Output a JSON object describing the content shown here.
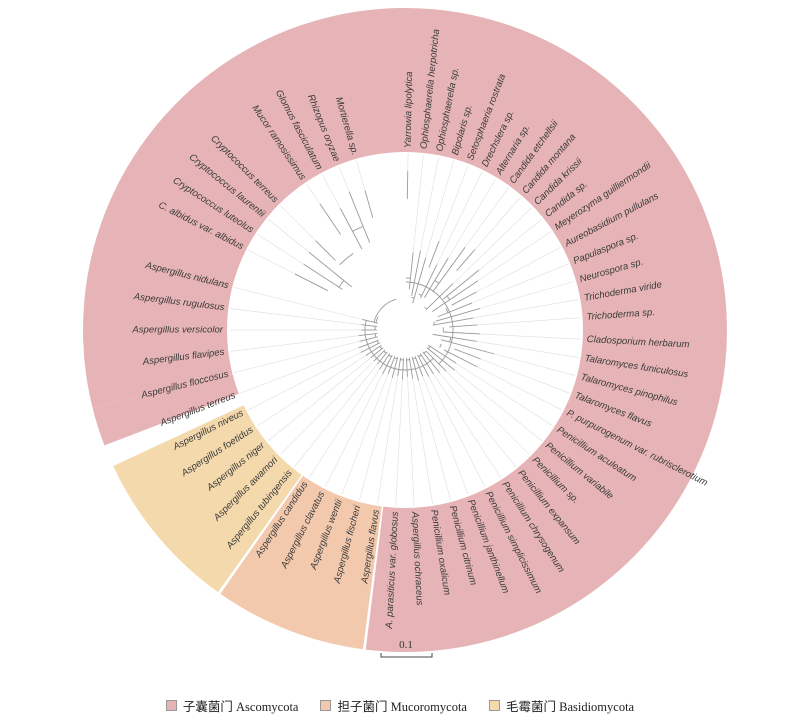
{
  "colors": {
    "ascomycota": "#e6b4b6",
    "mucoromycota": "#f3c9ae",
    "basidiomycota": "#f4d9ad",
    "branch": "#9a9a9a",
    "guide": "#dedede"
  },
  "clades": [
    {
      "id": "ascomycota",
      "start": 166.0,
      "end": 457.0,
      "color": "#e6b4b6"
    },
    {
      "id": "mucoromycota",
      "start": 457.5,
      "end": 485.0,
      "color": "#f3c9ae"
    },
    {
      "id": "basidiomycota",
      "start": 485.5,
      "end": 515.0,
      "color": "#f4d9ad"
    },
    {
      "id": "ascomycota-b",
      "start": 519.0,
      "end": 526.0,
      "color": "#e6b4b6"
    }
  ],
  "leaves": [
    {
      "name": "Yarrowia lipolytica",
      "angle": -89,
      "depth": 0.05
    },
    {
      "name": "Ophiosphaerella herpotricha",
      "angle": -84,
      "depth": 0.62
    },
    {
      "name": "Ophiosphaerella sp.",
      "angle": -79,
      "depth": 0.6
    },
    {
      "name": "Bipolaris sp.",
      "angle": -74,
      "depth": 0.64
    },
    {
      "name": "Setosphaeria rostrata",
      "angle": -69,
      "depth": 0.5
    },
    {
      "name": "Drechslera sp.",
      "angle": -64,
      "depth": 0.66
    },
    {
      "name": "Alternaria sp.",
      "angle": -59,
      "depth": 0.58
    },
    {
      "name": "Candida etchellsii",
      "angle": -54,
      "depth": 0.45
    },
    {
      "name": "Candida montana",
      "angle": -49,
      "depth": 0.42
    },
    {
      "name": "Candida krissii",
      "angle": -44,
      "depth": 0.7
    },
    {
      "name": "Candida sp.",
      "angle": -39,
      "depth": 0.5
    },
    {
      "name": "Meyerozyma guilliermondii",
      "angle": -34,
      "depth": 0.55
    },
    {
      "name": "Aureobasidium pullulans",
      "angle": -28,
      "depth": 0.6
    },
    {
      "name": "Papulaspora sp.",
      "angle": -22,
      "depth": 0.66
    },
    {
      "name": "Neurospora sp.",
      "angle": -16,
      "depth": 0.62
    },
    {
      "name": "Trichoderma viride",
      "angle": -10,
      "depth": 0.68
    },
    {
      "name": "Trichoderma sp.",
      "angle": -4,
      "depth": 0.66
    },
    {
      "name": "Cladosporium herbarum",
      "angle": 3,
      "depth": 0.64
    },
    {
      "name": "Talaromyces funiculosus",
      "angle": 9,
      "depth": 0.66
    },
    {
      "name": "Talaromyces pinophilus",
      "angle": 15,
      "depth": 0.52
    },
    {
      "name": "Talaromyces flavus",
      "angle": 21,
      "depth": 0.6
    },
    {
      "name": "P. purpurogenum var. rubrisclerotium",
      "angle": 27,
      "depth": 0.6
    },
    {
      "name": "Penicillium aculeatum",
      "angle": 33,
      "depth": 0.74
    },
    {
      "name": "Penicillium variabile",
      "angle": 39,
      "depth": 0.72
    },
    {
      "name": "Penicillium sp.",
      "angle": 45,
      "depth": 0.76
    },
    {
      "name": "Penicillium expansum",
      "angle": 51,
      "depth": 0.78
    },
    {
      "name": "Penicillium chrysogenum",
      "angle": 57,
      "depth": 0.8
    },
    {
      "name": "Penicillium simplicissimum",
      "angle": 63,
      "depth": 0.8
    },
    {
      "name": "Penicillium janthinellum",
      "angle": 69,
      "depth": 0.82
    },
    {
      "name": "Penicillium citrinum",
      "angle": 75,
      "depth": 0.8
    },
    {
      "name": "Penicillium oxalicum",
      "angle": 81,
      "depth": 0.82
    },
    {
      "name": "Aspergillus ochraceus",
      "angle": 87,
      "depth": 0.84
    },
    {
      "name": "A. parasiticus var. globosus",
      "angle": 93,
      "depth": 0.82
    },
    {
      "name": "Aspergillus flavus",
      "angle": 99,
      "depth": 0.84
    },
    {
      "name": "Aspergillus fischeri",
      "angle": 105,
      "depth": 0.82
    },
    {
      "name": "Aspergillus wentii",
      "angle": 111,
      "depth": 0.84
    },
    {
      "name": "Aspergillus clavatus",
      "angle": 117,
      "depth": 0.82
    },
    {
      "name": "Aspergillus candidus",
      "angle": 123,
      "depth": 0.84
    },
    {
      "name": "Aspergillus tubingensis",
      "angle": 129,
      "depth": 0.86
    },
    {
      "name": "Aspergillus awamori",
      "angle": 135,
      "depth": 0.86
    },
    {
      "name": "Aspergillus niger",
      "angle": 141,
      "depth": 0.86
    },
    {
      "name": "Aspergillus foetidus",
      "angle": 147,
      "depth": 0.84
    },
    {
      "name": "Aspergillus niveus",
      "angle": 153,
      "depth": 0.82
    },
    {
      "name": "Aspergillus terreus",
      "angle": 159,
      "depth": 0.82
    },
    {
      "name": "Aspergillus floccosus",
      "angle": 166,
      "depth": 0.84
    },
    {
      "name": "Aspergillus flavipes",
      "angle": 173,
      "depth": 0.84
    },
    {
      "name": "Aspergillus versicolor",
      "angle": 180,
      "depth": 0.86
    },
    {
      "name": "Aspergillus rugulosus",
      "angle": 187,
      "depth": 0.86
    },
    {
      "name": "Aspergillus nidulans",
      "angle": 194,
      "depth": 0.86
    },
    {
      "name": "C. albidus var. albidus",
      "angle": 207,
      "depth": 0.3
    },
    {
      "name": "Cryptococcus luteolus",
      "angle": 213,
      "depth": 0.32
    },
    {
      "name": "Cryptococcus laurentii",
      "angle": 219,
      "depth": 0.3
    },
    {
      "name": "Cryptococcus terreus",
      "angle": 225,
      "depth": 0.28
    },
    {
      "name": "Mucor ramosissimus",
      "angle": 236,
      "depth": 0.1
    },
    {
      "name": "Glomus fasciculatum",
      "angle": 242,
      "depth": 0.2
    },
    {
      "name": "Rhizopus oryzae",
      "angle": 248,
      "depth": 0.12
    },
    {
      "name": "Mortierella sp.",
      "angle": 254,
      "depth": 0.15
    }
  ],
  "scale_bar": {
    "label": "0.1"
  },
  "legend": [
    {
      "key": "ascomycota",
      "label": "子囊菌门 Ascomycota",
      "color": "#e6b4b6"
    },
    {
      "key": "mucoromycota",
      "label": "担子菌门 Mucoromycota",
      "color": "#f3c9ae"
    },
    {
      "key": "basidiomycota",
      "label": "毛霉菌门 Basidiomycota",
      "color": "#f4d9ad"
    }
  ]
}
